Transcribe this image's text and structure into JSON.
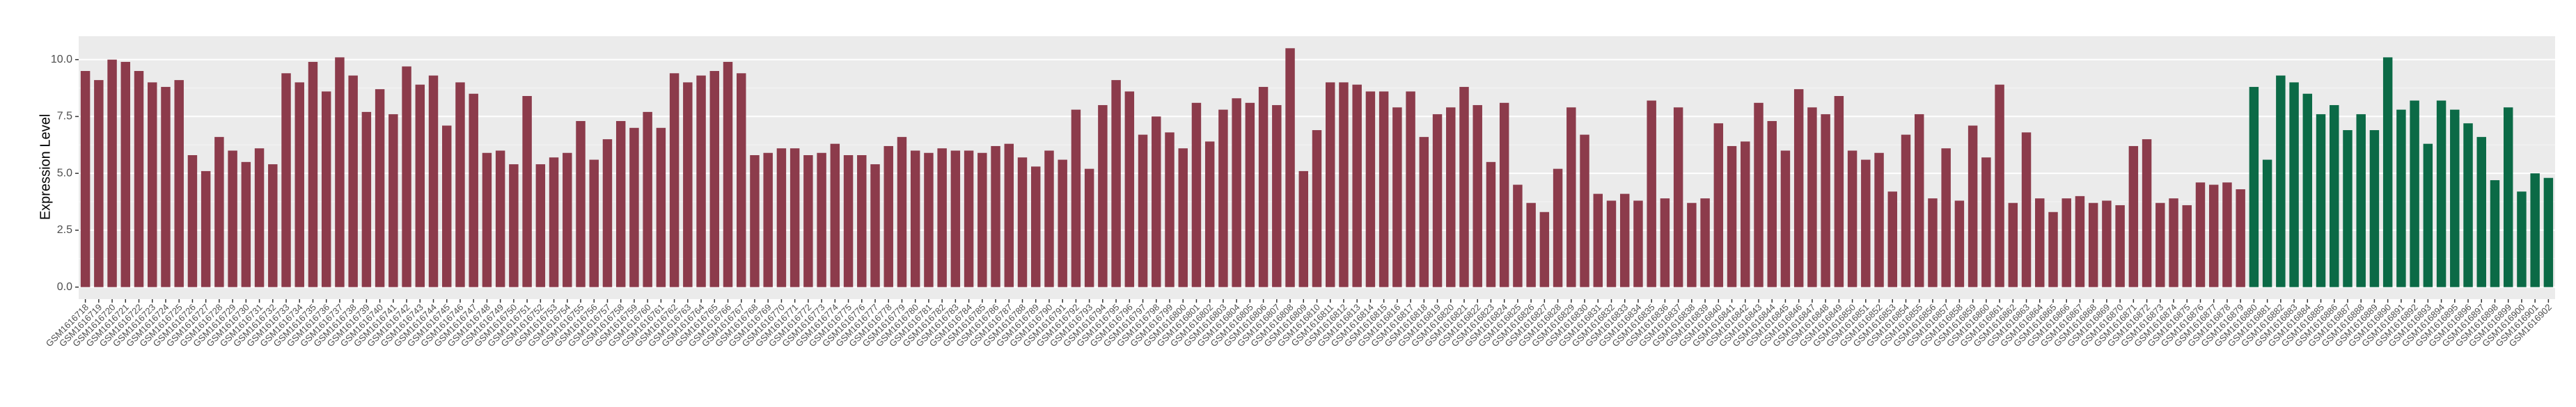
{
  "chart_data": {
    "type": "bar",
    "y_label": "Expression Level",
    "categories": [
      "GSM1616718",
      "GSM1616719",
      "GSM1616720",
      "GSM1616721",
      "GSM1616722",
      "GSM1616723",
      "GSM1616724",
      "GSM1616725",
      "GSM1616726",
      "GSM1616727",
      "GSM1616728",
      "GSM1616729",
      "GSM1616730",
      "GSM1616731",
      "GSM1616732",
      "GSM1616733",
      "GSM1616734",
      "GSM1616735",
      "GSM1616736",
      "GSM1616737",
      "GSM1616738",
      "GSM1616739",
      "GSM1616740",
      "GSM1616741",
      "GSM1616742",
      "GSM1616743",
      "GSM1616744",
      "GSM1616745",
      "GSM1616746",
      "GSM1616747",
      "GSM1616748",
      "GSM1616749",
      "GSM1616750",
      "GSM1616751",
      "GSM1616752",
      "GSM1616753",
      "GSM1616754",
      "GSM1616755",
      "GSM1616756",
      "GSM1616757",
      "GSM1616758",
      "GSM1616759",
      "GSM1616760",
      "GSM1616761",
      "GSM1616762",
      "GSM1616763",
      "GSM1616764",
      "GSM1616765",
      "GSM1616766",
      "GSM1616767",
      "GSM1616768",
      "GSM1616769",
      "GSM1616770",
      "GSM1616771",
      "GSM1616772",
      "GSM1616773",
      "GSM1616774",
      "GSM1616775",
      "GSM1616776",
      "GSM1616777",
      "GSM1616778",
      "GSM1616779",
      "GSM1616780",
      "GSM1616781",
      "GSM1616782",
      "GSM1616783",
      "GSM1616784",
      "GSM1616785",
      "GSM1616786",
      "GSM1616787",
      "GSM1616788",
      "GSM1616789",
      "GSM1616790",
      "GSM1616791",
      "GSM1616792",
      "GSM1616793",
      "GSM1616794",
      "GSM1616795",
      "GSM1616796",
      "GSM1616797",
      "GSM1616798",
      "GSM1616799",
      "GSM1616800",
      "GSM1616801",
      "GSM1616802",
      "GSM1616803",
      "GSM1616804",
      "GSM1616805",
      "GSM1616806",
      "GSM1616807",
      "GSM1616808",
      "GSM1616809",
      "GSM1616810",
      "GSM1616811",
      "GSM1616812",
      "GSM1616813",
      "GSM1616814",
      "GSM1616815",
      "GSM1616816",
      "GSM1616817",
      "GSM1616818",
      "GSM1616819",
      "GSM1616820",
      "GSM1616821",
      "GSM1616822",
      "GSM1616823",
      "GSM1616824",
      "GSM1616825",
      "GSM1616826",
      "GSM1616827",
      "GSM1616828",
      "GSM1616829",
      "GSM1616830",
      "GSM1616831",
      "GSM1616832",
      "GSM1616833",
      "GSM1616834",
      "GSM1616835",
      "GSM1616836",
      "GSM1616837",
      "GSM1616838",
      "GSM1616839",
      "GSM1616840",
      "GSM1616841",
      "GSM1616842",
      "GSM1616843",
      "GSM1616844",
      "GSM1616845",
      "GSM1616846",
      "GSM1616847",
      "GSM1616848",
      "GSM1616849",
      "GSM1616850",
      "GSM1616851",
      "GSM1616852",
      "GSM1616853",
      "GSM1616854",
      "GSM1616855",
      "GSM1616856",
      "GSM1616857",
      "GSM1616858",
      "GSM1616859",
      "GSM1616860",
      "GSM1616861",
      "GSM1616862",
      "GSM1616863",
      "GSM1616864",
      "GSM1616865",
      "GSM1616866",
      "GSM1616867",
      "GSM1616868",
      "GSM1616869",
      "GSM1616870",
      "GSM1616871",
      "GSM1616872",
      "GSM1616873",
      "GSM1616874",
      "GSM1616875",
      "GSM1616876",
      "GSM1616877",
      "GSM1616878",
      "GSM1616879",
      "GSM1616880",
      "GSM1616881",
      "GSM1616882",
      "GSM1616883",
      "GSM1616884",
      "GSM1616885",
      "GSM1616886",
      "GSM1616887",
      "GSM1616888",
      "GSM1616889",
      "GSM1616890",
      "GSM1616891",
      "GSM1616892",
      "GSM1616893",
      "GSM1616894",
      "GSM1616895",
      "GSM1616896",
      "GSM1616897",
      "GSM1616898",
      "GSM1616899",
      "GSM1616900",
      "GSM1616901",
      "GSM1616902"
    ],
    "values": [
      9.5,
      9.1,
      10.0,
      9.9,
      9.5,
      9.0,
      8.8,
      9.1,
      5.8,
      5.1,
      6.6,
      6.0,
      5.5,
      6.1,
      5.4,
      9.4,
      9.0,
      9.9,
      8.6,
      10.1,
      9.3,
      7.7,
      8.7,
      7.6,
      9.7,
      8.9,
      9.3,
      7.1,
      9.0,
      8.5,
      5.9,
      6.0,
      5.4,
      8.4,
      5.4,
      5.7,
      5.9,
      7.3,
      5.6,
      6.5,
      7.3,
      7.0,
      7.7,
      7.0,
      9.4,
      9.0,
      9.3,
      9.5,
      9.9,
      9.4,
      5.8,
      5.9,
      6.1,
      6.1,
      5.8,
      5.9,
      6.3,
      5.8,
      5.8,
      5.4,
      6.2,
      6.6,
      6.0,
      5.9,
      6.1,
      6.0,
      6.0,
      5.9,
      6.2,
      6.3,
      5.7,
      5.3,
      6.0,
      5.6,
      7.8,
      5.2,
      8.0,
      9.1,
      8.6,
      6.7,
      7.5,
      6.8,
      6.1,
      8.1,
      6.4,
      7.8,
      8.3,
      8.1,
      8.8,
      8.0,
      10.5,
      5.1,
      6.9,
      9.0,
      9.0,
      8.9,
      8.6,
      8.6,
      7.9,
      8.6,
      6.6,
      7.6,
      7.9,
      8.8,
      8.0,
      5.5,
      8.1,
      4.5,
      3.7,
      3.3,
      5.2,
      7.9,
      6.7,
      4.1,
      3.8,
      4.1,
      3.8,
      8.2,
      3.9,
      7.9,
      3.7,
      3.9,
      7.2,
      6.2,
      6.4,
      8.1,
      7.3,
      6.0,
      8.7,
      7.9,
      7.6,
      8.4,
      6.0,
      5.6,
      5.9,
      4.2,
      6.7,
      7.6,
      3.9,
      6.1,
      3.8,
      7.1,
      5.7,
      8.9,
      3.7,
      6.8,
      3.9,
      3.3,
      3.9,
      4.0,
      3.7,
      3.8,
      3.6,
      6.2,
      6.5,
      3.7,
      3.9,
      3.6,
      4.6,
      4.5,
      4.6,
      4.3,
      8.8,
      5.6,
      9.3,
      9.0,
      8.5,
      7.6,
      8.0,
      6.9,
      7.6,
      6.9,
      10.1,
      7.8,
      8.2,
      6.3,
      8.2,
      7.8,
      7.2,
      6.6,
      4.7,
      7.9,
      4.2,
      5.0,
      4.8
    ],
    "colors": [
      "#8c3b4b",
      "#8c3b4b",
      "#8c3b4b",
      "#8c3b4b",
      "#8c3b4b",
      "#8c3b4b",
      "#8c3b4b",
      "#8c3b4b",
      "#8c3b4b",
      "#8c3b4b",
      "#8c3b4b",
      "#8c3b4b",
      "#8c3b4b",
      "#8c3b4b",
      "#8c3b4b",
      "#8c3b4b",
      "#8c3b4b",
      "#8c3b4b",
      "#8c3b4b",
      "#8c3b4b",
      "#8c3b4b",
      "#8c3b4b",
      "#8c3b4b",
      "#8c3b4b",
      "#8c3b4b",
      "#8c3b4b",
      "#8c3b4b",
      "#8c3b4b",
      "#8c3b4b",
      "#8c3b4b",
      "#8c3b4b",
      "#8c3b4b",
      "#8c3b4b",
      "#8c3b4b",
      "#8c3b4b",
      "#8c3b4b",
      "#8c3b4b",
      "#8c3b4b",
      "#8c3b4b",
      "#8c3b4b",
      "#8c3b4b",
      "#8c3b4b",
      "#8c3b4b",
      "#8c3b4b",
      "#8c3b4b",
      "#8c3b4b",
      "#8c3b4b",
      "#8c3b4b",
      "#8c3b4b",
      "#8c3b4b",
      "#8c3b4b",
      "#8c3b4b",
      "#8c3b4b",
      "#8c3b4b",
      "#8c3b4b",
      "#8c3b4b",
      "#8c3b4b",
      "#8c3b4b",
      "#8c3b4b",
      "#8c3b4b",
      "#8c3b4b",
      "#8c3b4b",
      "#8c3b4b",
      "#8c3b4b",
      "#8c3b4b",
      "#8c3b4b",
      "#8c3b4b",
      "#8c3b4b",
      "#8c3b4b",
      "#8c3b4b",
      "#8c3b4b",
      "#8c3b4b",
      "#8c3b4b",
      "#8c3b4b",
      "#8c3b4b",
      "#8c3b4b",
      "#8c3b4b",
      "#8c3b4b",
      "#8c3b4b",
      "#8c3b4b",
      "#8c3b4b",
      "#8c3b4b",
      "#8c3b4b",
      "#8c3b4b",
      "#8c3b4b",
      "#8c3b4b",
      "#8c3b4b",
      "#8c3b4b",
      "#8c3b4b",
      "#8c3b4b",
      "#8c3b4b",
      "#8c3b4b",
      "#8c3b4b",
      "#8c3b4b",
      "#8c3b4b",
      "#8c3b4b",
      "#8c3b4b",
      "#8c3b4b",
      "#8c3b4b",
      "#8c3b4b",
      "#8c3b4b",
      "#8c3b4b",
      "#8c3b4b",
      "#8c3b4b",
      "#8c3b4b",
      "#8c3b4b",
      "#8c3b4b",
      "#8c3b4b",
      "#8c3b4b",
      "#8c3b4b",
      "#8c3b4b",
      "#8c3b4b",
      "#8c3b4b",
      "#8c3b4b",
      "#8c3b4b",
      "#8c3b4b",
      "#8c3b4b",
      "#8c3b4b",
      "#8c3b4b",
      "#8c3b4b",
      "#8c3b4b",
      "#8c3b4b",
      "#8c3b4b",
      "#8c3b4b",
      "#8c3b4b",
      "#8c3b4b",
      "#8c3b4b",
      "#8c3b4b",
      "#8c3b4b",
      "#8c3b4b",
      "#8c3b4b",
      "#8c3b4b",
      "#8c3b4b",
      "#8c3b4b",
      "#8c3b4b",
      "#8c3b4b",
      "#8c3b4b",
      "#8c3b4b",
      "#8c3b4b",
      "#8c3b4b",
      "#8c3b4b",
      "#8c3b4b",
      "#8c3b4b",
      "#8c3b4b",
      "#8c3b4b",
      "#8c3b4b",
      "#8c3b4b",
      "#8c3b4b",
      "#8c3b4b",
      "#8c3b4b",
      "#8c3b4b",
      "#8c3b4b",
      "#8c3b4b",
      "#8c3b4b",
      "#8c3b4b",
      "#8c3b4b",
      "#8c3b4b",
      "#8c3b4b",
      "#8c3b4b",
      "#8c3b4b",
      "#8c3b4b",
      "#8c3b4b",
      "#0b6a46",
      "#0b6a46",
      "#0b6a46",
      "#0b6a46",
      "#0b6a46",
      "#0b6a46",
      "#0b6a46",
      "#0b6a46",
      "#0b6a46",
      "#0b6a46",
      "#0b6a46",
      "#0b6a46",
      "#0b6a46",
      "#0b6a46",
      "#0b6a46",
      "#0b6a46",
      "#0b6a46",
      "#0b6a46",
      "#0b6a46",
      "#0b6a46",
      "#0b6a46",
      "#0b6a46",
      "#0b6a46"
    ],
    "ylim": [
      -0.53,
      11.03
    ],
    "yticks": [
      {
        "value": 0,
        "label": "0.0"
      },
      2.5,
      {
        "value": 5,
        "label": "5.0"
      },
      7.5,
      {
        "value": 10,
        "label": "10.0"
      }
    ],
    "grid": true
  }
}
